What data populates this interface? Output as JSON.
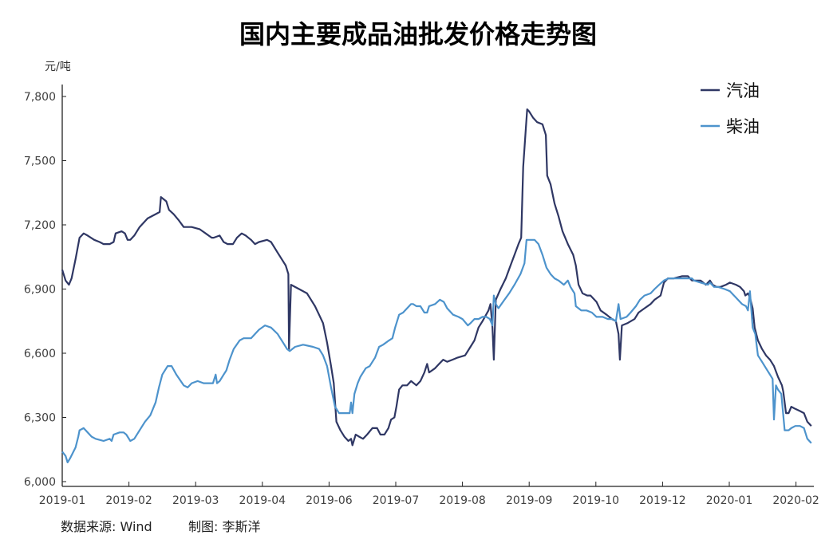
{
  "chart_data": {
    "type": "line",
    "title": "国内主要成品油批发价格走势图",
    "ylabel": "元/吨",
    "xlabel": "",
    "ylim": [
      6000,
      7800
    ],
    "yticks": [
      6000,
      6300,
      6600,
      6900,
      7200,
      7500,
      7800
    ],
    "ytick_labels": [
      "6,000",
      "6,300",
      "6,600",
      "6,900",
      "7,200",
      "7,500",
      "7,800"
    ],
    "x_unit_note": "x = position in tick-label units (0 = 2019-01, 1 = 2019-02, ...)",
    "xlim": [
      0,
      11.25
    ],
    "xtick_labels": [
      "2019-01",
      "2019-02",
      "2019-03",
      "2019-04",
      "2019-06",
      "2019-07",
      "2019-08",
      "2019-09",
      "2019-10",
      "2019-12",
      "2020-01",
      "2020-02"
    ],
    "grid": false,
    "legend_position": "top-right",
    "series": [
      {
        "name": "汽油",
        "color": "#2f3764",
        "x": [
          0,
          0.05,
          0.1,
          0.14,
          0.2,
          0.26,
          0.32,
          0.38,
          0.48,
          0.56,
          0.62,
          0.71,
          0.77,
          0.8,
          0.89,
          0.94,
          0.98,
          1.02,
          1.08,
          1.16,
          1.28,
          1.4,
          1.46,
          1.48,
          1.56,
          1.6,
          1.67,
          1.75,
          1.82,
          1.94,
          2.06,
          2.15,
          2.24,
          2.27,
          2.36,
          2.42,
          2.48,
          2.56,
          2.62,
          2.69,
          2.75,
          2.83,
          2.89,
          2.95,
          3.07,
          3.13,
          3.23,
          3.31,
          3.35,
          3.39,
          3.4,
          3.43,
          3.55,
          3.67,
          3.79,
          3.85,
          3.91,
          3.97,
          4.03,
          4.07,
          4.11,
          4.17,
          4.23,
          4.29,
          4.33,
          4.35,
          4.4,
          4.45,
          4.51,
          4.57,
          4.65,
          4.72,
          4.77,
          4.83,
          4.89,
          4.93,
          4.98,
          5.01,
          5.05,
          5.1,
          5.17,
          5.23,
          5.31,
          5.37,
          5.43,
          5.47,
          5.5,
          5.59,
          5.65,
          5.71,
          5.77,
          5.85,
          5.93,
          6.04,
          6.12,
          6.18,
          6.24,
          6.3,
          6.39,
          6.42,
          6.45,
          6.47,
          6.5,
          6.57,
          6.65,
          6.72,
          6.78,
          6.84,
          6.88,
          6.91,
          6.95,
          6.97,
          7.0,
          7.06,
          7.12,
          7.2,
          7.25,
          7.27,
          7.32,
          7.38,
          7.44,
          7.5,
          7.58,
          7.66,
          7.7,
          7.74,
          7.8,
          7.87,
          7.92,
          8.01,
          8.07,
          8.16,
          8.24,
          8.3,
          8.34,
          8.36,
          8.39,
          8.47,
          8.58,
          8.64,
          8.73,
          8.82,
          8.88,
          8.97,
          9.02,
          9.08,
          9.17,
          9.29,
          9.38,
          9.44,
          9.57,
          9.65,
          9.71,
          9.75,
          9.81,
          9.87,
          9.95,
          10.01,
          10.1,
          10.16,
          10.22,
          10.24,
          10.28,
          10.31,
          10.35,
          10.38,
          10.43,
          10.49,
          10.55,
          10.61,
          10.67,
          10.73,
          10.79,
          10.81,
          10.85,
          10.89,
          10.93,
          10.99,
          11.06,
          11.12,
          11.17,
          11.23
        ],
        "values": [
          6990,
          6940,
          6920,
          6950,
          7040,
          7140,
          7160,
          7150,
          7130,
          7120,
          7110,
          7110,
          7120,
          7160,
          7170,
          7160,
          7130,
          7130,
          7150,
          7190,
          7230,
          7250,
          7260,
          7330,
          7310,
          7270,
          7250,
          7220,
          7190,
          7190,
          7180,
          7160,
          7140,
          7140,
          7150,
          7120,
          7110,
          7110,
          7140,
          7160,
          7150,
          7130,
          7110,
          7120,
          7130,
          7120,
          7070,
          7030,
          7010,
          6970,
          6620,
          6920,
          6900,
          6880,
          6820,
          6780,
          6740,
          6650,
          6540,
          6460,
          6280,
          6240,
          6210,
          6190,
          6200,
          6170,
          6220,
          6210,
          6200,
          6220,
          6250,
          6250,
          6220,
          6220,
          6250,
          6290,
          6300,
          6350,
          6430,
          6450,
          6450,
          6470,
          6450,
          6470,
          6510,
          6550,
          6510,
          6530,
          6550,
          6570,
          6560,
          6570,
          6580,
          6590,
          6630,
          6660,
          6720,
          6750,
          6800,
          6830,
          6720,
          6570,
          6850,
          6900,
          6950,
          7010,
          7060,
          7110,
          7140,
          7470,
          7650,
          7740,
          7730,
          7700,
          7680,
          7670,
          7620,
          7430,
          7390,
          7300,
          7240,
          7170,
          7110,
          7060,
          7010,
          6920,
          6880,
          6870,
          6870,
          6840,
          6800,
          6780,
          6760,
          6750,
          6690,
          6570,
          6730,
          6740,
          6760,
          6790,
          6810,
          6830,
          6850,
          6870,
          6930,
          6950,
          6950,
          6960,
          6960,
          6940,
          6940,
          6920,
          6940,
          6920,
          6910,
          6910,
          6920,
          6930,
          6920,
          6910,
          6890,
          6870,
          6880,
          6860,
          6810,
          6720,
          6660,
          6620,
          6590,
          6570,
          6540,
          6490,
          6450,
          6420,
          6320,
          6320,
          6350,
          6340,
          6330,
          6320,
          6280,
          6260
        ]
      },
      {
        "name": "柴油",
        "color": "#4d93cc",
        "x": [
          0,
          0.05,
          0.08,
          0.12,
          0.2,
          0.24,
          0.26,
          0.32,
          0.38,
          0.44,
          0.5,
          0.62,
          0.71,
          0.74,
          0.77,
          0.86,
          0.92,
          0.96,
          1.02,
          1.08,
          1.16,
          1.24,
          1.32,
          1.4,
          1.45,
          1.5,
          1.58,
          1.64,
          1.71,
          1.82,
          1.88,
          1.94,
          2.03,
          2.12,
          2.2,
          2.26,
          2.3,
          2.32,
          2.36,
          2.42,
          2.46,
          2.51,
          2.57,
          2.66,
          2.72,
          2.83,
          2.95,
          3.04,
          3.13,
          3.23,
          3.31,
          3.37,
          3.41,
          3.49,
          3.61,
          3.76,
          3.85,
          3.91,
          3.97,
          4.03,
          4.09,
          4.15,
          4.25,
          4.31,
          4.33,
          4.35,
          4.38,
          4.43,
          4.47,
          4.55,
          4.61,
          4.69,
          4.75,
          4.81,
          4.9,
          4.95,
          4.99,
          5.05,
          5.11,
          5.17,
          5.23,
          5.26,
          5.31,
          5.37,
          5.43,
          5.47,
          5.5,
          5.59,
          5.66,
          5.72,
          5.77,
          5.86,
          5.94,
          6.0,
          6.08,
          6.12,
          6.18,
          6.24,
          6.3,
          6.36,
          6.41,
          6.45,
          6.47,
          6.5,
          6.54,
          6.63,
          6.7,
          6.78,
          6.87,
          6.93,
          6.96,
          7.0,
          7.08,
          7.14,
          7.2,
          7.26,
          7.32,
          7.38,
          7.44,
          7.52,
          7.58,
          7.62,
          7.68,
          7.7,
          7.78,
          7.86,
          7.94,
          8.01,
          8.1,
          8.18,
          8.25,
          8.3,
          8.34,
          8.37,
          8.46,
          8.52,
          8.6,
          8.66,
          8.73,
          8.82,
          8.88,
          8.95,
          9.02,
          9.09,
          9.17,
          9.29,
          9.44,
          9.47,
          9.57,
          9.68,
          9.71,
          9.77,
          9.83,
          9.93,
          10.01,
          10.1,
          10.19,
          10.25,
          10.28,
          10.31,
          10.35,
          10.39,
          10.43,
          10.49,
          10.55,
          10.61,
          10.65,
          10.67,
          10.7,
          10.73,
          10.78,
          10.83,
          10.89,
          10.93,
          10.99,
          11.06,
          11.12,
          11.17,
          11.23
        ],
        "values": [
          6140,
          6120,
          6090,
          6110,
          6160,
          6210,
          6240,
          6250,
          6230,
          6210,
          6200,
          6190,
          6200,
          6190,
          6220,
          6230,
          6230,
          6220,
          6190,
          6200,
          6240,
          6280,
          6310,
          6370,
          6440,
          6500,
          6540,
          6540,
          6500,
          6450,
          6440,
          6460,
          6470,
          6460,
          6460,
          6460,
          6500,
          6460,
          6470,
          6500,
          6520,
          6570,
          6620,
          6660,
          6670,
          6670,
          6710,
          6730,
          6720,
          6690,
          6650,
          6620,
          6610,
          6630,
          6640,
          6630,
          6620,
          6590,
          6540,
          6440,
          6350,
          6320,
          6320,
          6320,
          6370,
          6320,
          6410,
          6460,
          6490,
          6530,
          6540,
          6580,
          6630,
          6640,
          6660,
          6670,
          6720,
          6780,
          6790,
          6810,
          6830,
          6830,
          6820,
          6820,
          6790,
          6790,
          6820,
          6830,
          6850,
          6840,
          6810,
          6780,
          6770,
          6760,
          6730,
          6740,
          6760,
          6760,
          6770,
          6770,
          6760,
          6730,
          6870,
          6830,
          6810,
          6850,
          6880,
          6920,
          6970,
          7020,
          7130,
          7130,
          7130,
          7110,
          7060,
          7000,
          6970,
          6950,
          6940,
          6920,
          6940,
          6910,
          6880,
          6820,
          6800,
          6800,
          6790,
          6770,
          6770,
          6760,
          6760,
          6750,
          6830,
          6760,
          6770,
          6790,
          6820,
          6850,
          6870,
          6880,
          6900,
          6920,
          6940,
          6950,
          6950,
          6950,
          6950,
          6940,
          6930,
          6920,
          6930,
          6910,
          6910,
          6900,
          6890,
          6860,
          6830,
          6820,
          6800,
          6890,
          6720,
          6690,
          6590,
          6560,
          6530,
          6500,
          6480,
          6290,
          6450,
          6430,
          6410,
          6240,
          6240,
          6250,
          6260,
          6260,
          6250,
          6200,
          6180
        ]
      }
    ]
  },
  "footer": {
    "source": "数据来源: Wind",
    "author": "制图: 李斯洋"
  }
}
